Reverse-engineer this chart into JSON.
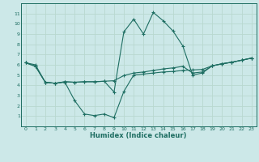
{
  "xlabel": "Humidex (Indice chaleur)",
  "bg_color": "#cce8e8",
  "grid_color": "#b8d8d0",
  "line_color": "#1e6e62",
  "xlim": [
    -0.5,
    23.5
  ],
  "ylim": [
    0,
    12
  ],
  "xticks": [
    0,
    1,
    2,
    3,
    4,
    5,
    6,
    7,
    8,
    9,
    10,
    11,
    12,
    13,
    14,
    15,
    16,
    17,
    18,
    19,
    20,
    21,
    22,
    23
  ],
  "yticks": [
    1,
    2,
    3,
    4,
    5,
    6,
    7,
    8,
    9,
    10,
    11
  ],
  "curve_bottom_x": [
    0,
    1,
    2,
    3,
    4,
    5,
    6,
    7,
    8,
    9,
    10,
    11,
    12,
    13,
    14,
    15,
    16,
    17,
    18,
    19,
    20,
    21,
    22,
    23
  ],
  "curve_bottom_y": [
    6.2,
    6.0,
    4.3,
    4.2,
    4.3,
    2.5,
    1.2,
    1.05,
    1.2,
    0.85,
    3.4,
    5.0,
    5.1,
    5.2,
    5.3,
    5.35,
    5.45,
    5.5,
    5.55,
    5.9,
    6.1,
    6.25,
    6.45,
    6.65
  ],
  "curve_peak_x": [
    0,
    1,
    2,
    3,
    4,
    5,
    6,
    7,
    8,
    9,
    10,
    11,
    12,
    13,
    14,
    15,
    16,
    17,
    18,
    19,
    20,
    21,
    22,
    23
  ],
  "curve_peak_y": [
    6.2,
    5.85,
    4.3,
    4.2,
    4.35,
    4.3,
    4.35,
    4.35,
    4.4,
    3.35,
    9.2,
    10.45,
    9.0,
    11.1,
    10.3,
    9.3,
    7.85,
    5.0,
    5.2,
    5.9,
    6.1,
    6.25,
    6.45,
    6.65
  ],
  "curve_linear_x": [
    0,
    1,
    2,
    3,
    4,
    5,
    6,
    7,
    8,
    9,
    10,
    11,
    12,
    13,
    14,
    15,
    16,
    17,
    18,
    19,
    20,
    21,
    22,
    23
  ],
  "curve_linear_y": [
    6.2,
    5.85,
    4.3,
    4.2,
    4.35,
    4.3,
    4.35,
    4.35,
    4.4,
    4.45,
    4.95,
    5.2,
    5.3,
    5.45,
    5.6,
    5.7,
    5.85,
    5.2,
    5.3,
    5.9,
    6.1,
    6.25,
    6.45,
    6.65
  ]
}
